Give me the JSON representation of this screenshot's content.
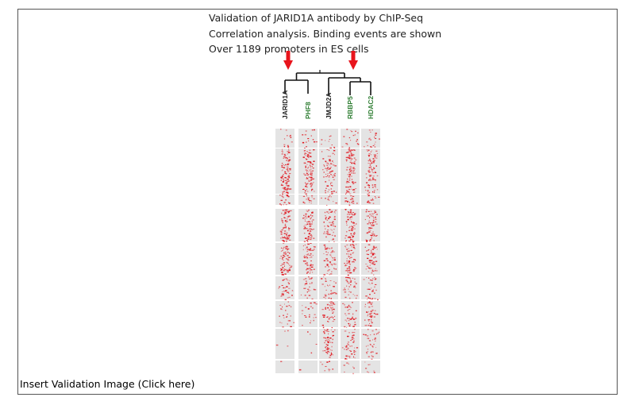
{
  "caption": {
    "line1": "Validation of JARID1A antibody by ChIP-Seq",
    "line2": "Correlation analysis.  Binding events are shown",
    "line3": "Over 1189 promoters in ES cells"
  },
  "columns": [
    {
      "label": "JARID1A",
      "color": "#222222",
      "highlighted": true
    },
    {
      "label": "PHF8",
      "color": "#2e7d32",
      "highlighted": false
    },
    {
      "label": "JMJD2A",
      "color": "#222222",
      "highlighted": false
    },
    {
      "label": "RBBP5",
      "color": "#2e7d32",
      "highlighted": true
    },
    {
      "label": "HDAC2",
      "color": "#2e7d32",
      "highlighted": false
    }
  ],
  "colors": {
    "arrow": "#e8141c",
    "signal": "#e0141c",
    "track": "#e4e4e4",
    "dendrogram": "#111111"
  },
  "insert_link": "Insert Validation Image (Click here)"
}
